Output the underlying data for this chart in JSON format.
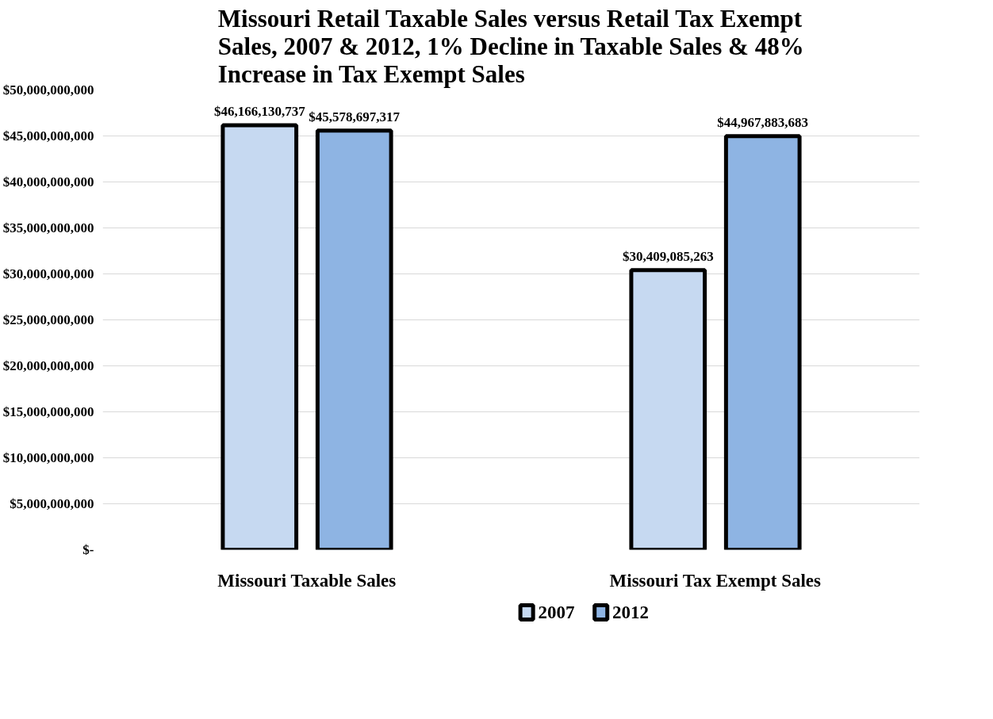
{
  "chart_data": {
    "type": "bar",
    "title": "Missouri Retail Taxable Sales versus Retail Tax Exempt Sales, 2007 & 2012, 1% Decline in Taxable Sales & 48% Increase in Tax Exempt Sales",
    "categories": [
      "Missouri Taxable Sales",
      "Missouri Tax Exempt Sales"
    ],
    "series": [
      {
        "name": "2007",
        "color": "#c6d9f1",
        "values": [
          46166130737,
          30409085263
        ],
        "value_labels": [
          "$46,166,130,737",
          "$30,409,085,263"
        ]
      },
      {
        "name": "2012",
        "color": "#8eb4e3",
        "values": [
          45578697317,
          44967883683
        ],
        "value_labels": [
          "$45,578,697,317",
          "$44,967,883,683"
        ]
      }
    ],
    "ylim": [
      0,
      50000000000
    ],
    "yticks": [
      {
        "value": 0,
        "label": "$-"
      },
      {
        "value": 5000000000,
        "label": "$5,000,000,000"
      },
      {
        "value": 10000000000,
        "label": "$10,000,000,000"
      },
      {
        "value": 15000000000,
        "label": "$15,000,000,000"
      },
      {
        "value": 20000000000,
        "label": "$20,000,000,000"
      },
      {
        "value": 25000000000,
        "label": "$25,000,000,000"
      },
      {
        "value": 30000000000,
        "label": "$30,000,000,000"
      },
      {
        "value": 35000000000,
        "label": "$35,000,000,000"
      },
      {
        "value": 40000000000,
        "label": "$40,000,000,000"
      },
      {
        "value": 45000000000,
        "label": "$45,000,000,000"
      },
      {
        "value": 50000000000,
        "label": "$50,000,000,000"
      }
    ],
    "grid": "y",
    "legend": "bottom"
  }
}
